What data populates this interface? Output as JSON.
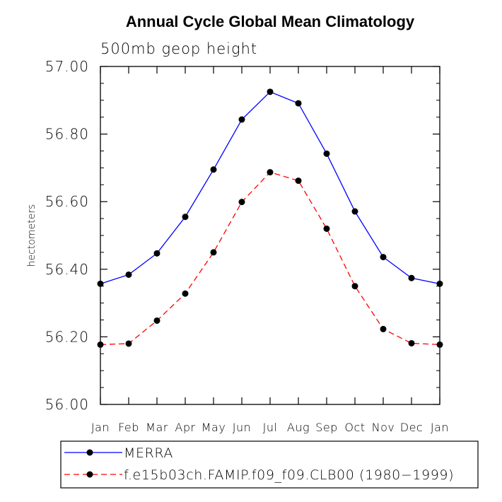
{
  "chart_data": {
    "type": "line",
    "title": "Annual Cycle Global Mean Climatology",
    "subtitle": "500mb geop height",
    "ylabel": "hectometers",
    "xlabel": "",
    "categories": [
      "Jan",
      "Feb",
      "Mar",
      "Apr",
      "May",
      "Jun",
      "Jul",
      "Aug",
      "Sep",
      "Oct",
      "Nov",
      "Dec",
      "Jan"
    ],
    "ylim": [
      56.0,
      57.0
    ],
    "yticks": [
      "56.00",
      "56.20",
      "56.40",
      "56.60",
      "56.80",
      "57.00"
    ],
    "grid": false,
    "legend_position": "bottom-left",
    "series": [
      {
        "name": "MERRA",
        "color": "#0000ff",
        "dash": "solid",
        "marker": "filled-circle",
        "values": [
          56.357,
          56.384,
          56.447,
          56.555,
          56.695,
          56.843,
          56.925,
          56.891,
          56.742,
          56.571,
          56.436,
          56.374,
          56.357
        ]
      },
      {
        "name": "f.e15b03ch.FAMIP.f09_f09.CLB00 (1980−1999)",
        "color": "#ff0000",
        "dash": "dashed",
        "marker": "filled-circle",
        "values": [
          56.177,
          56.18,
          56.248,
          56.328,
          56.45,
          56.599,
          56.687,
          56.662,
          56.52,
          56.35,
          56.223,
          56.181,
          56.177
        ]
      }
    ]
  }
}
